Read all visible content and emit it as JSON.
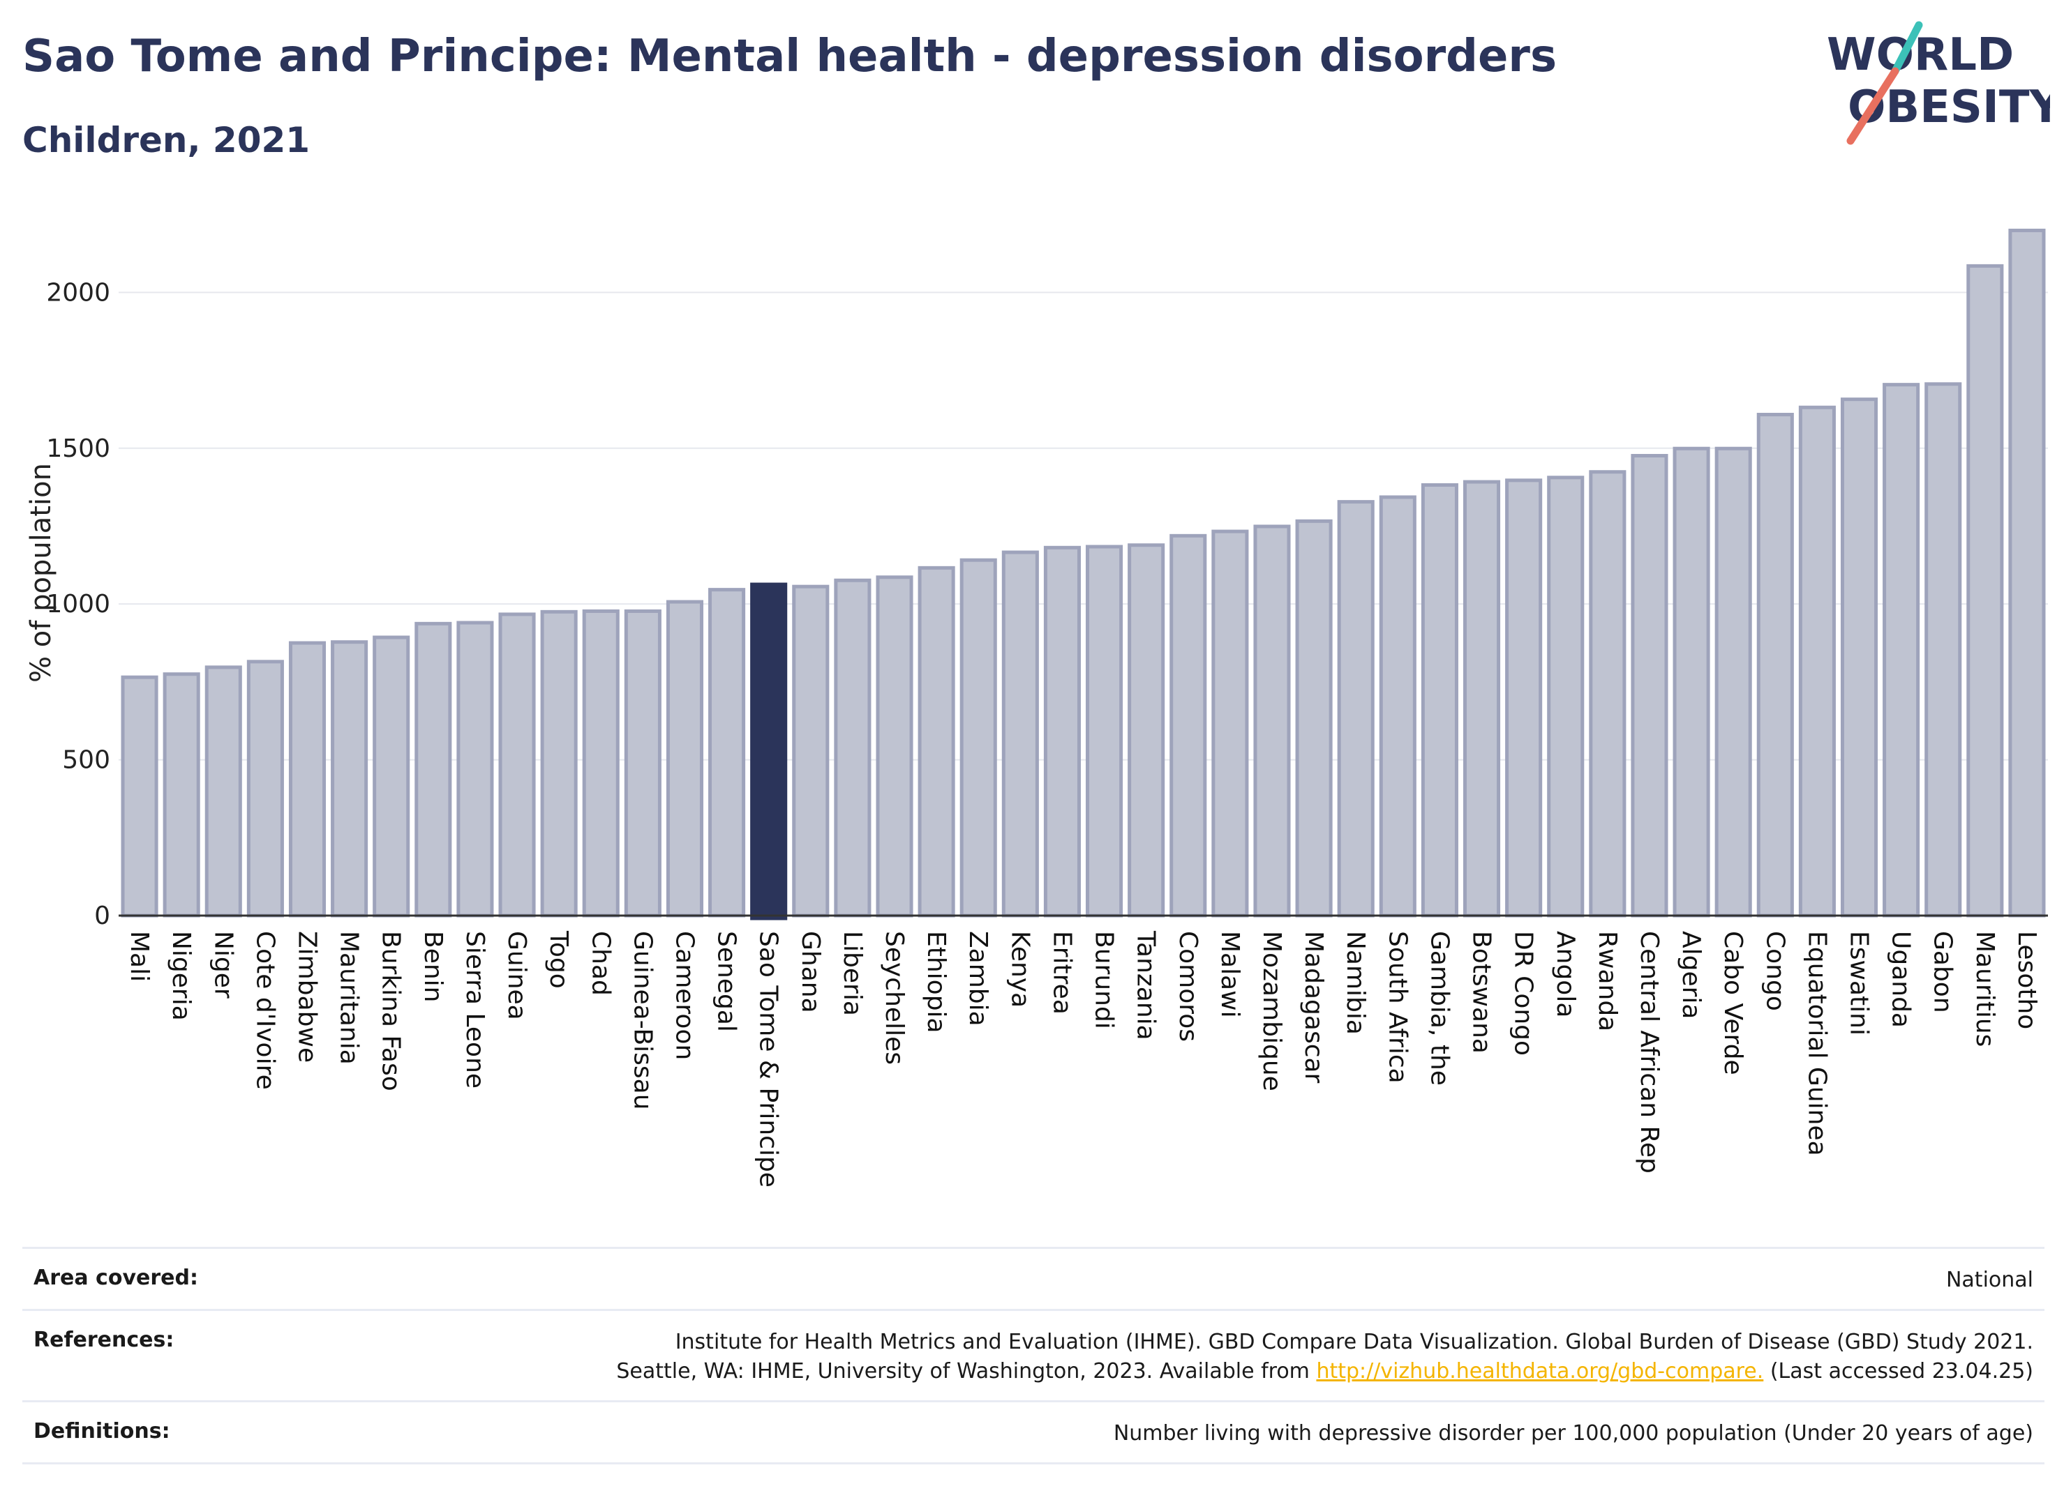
{
  "header": {
    "title": "Sao Tome and Principe: Mental health - depression disorders",
    "subtitle": "Children, 2021"
  },
  "logo": {
    "line1": "WORLD",
    "line2": "OBESITY"
  },
  "colors": {
    "highlight": "#2b345a",
    "bar_fill": "#bfc3d1",
    "bar_stroke": "#9ea3bb",
    "accent_teal": "#3cc1b8",
    "accent_coral": "#e8705f",
    "link": "#f4b400"
  },
  "chart_data": {
    "type": "bar",
    "ylabel": "% of population",
    "ylim": [
      0,
      2200
    ],
    "yticks": [
      0,
      500,
      1000,
      1500,
      2000
    ],
    "grid": true,
    "highlight_category": "Sao Tome & Principe",
    "categories": [
      "Mali",
      "Nigeria",
      "Niger",
      "Cote d'Ivoire",
      "Zimbabwe",
      "Mauritania",
      "Burkina Faso",
      "Benin",
      "Sierra Leone",
      "Guinea",
      "Togo",
      "Chad",
      "Guinea-Bissau",
      "Cameroon",
      "Senegal",
      "Sao Tome & Principe",
      "Ghana",
      "Liberia",
      "Seychelles",
      "Ethiopia",
      "Zambia",
      "Kenya",
      "Eritrea",
      "Burundi",
      "Tanzania",
      "Comoros",
      "Malawi",
      "Mozambique",
      "Madagascar",
      "Namibia",
      "South Africa",
      "Gambia, the",
      "Botswana",
      "DR Congo",
      "Angola",
      "Rwanda",
      "Central African Rep",
      "Algeria",
      "Cabo Verde",
      "Congo",
      "Equatorial Guinea",
      "Eswatini",
      "Uganda",
      "Gabon",
      "Mauritius",
      "Lesotho"
    ],
    "values": [
      765,
      775,
      797,
      815,
      875,
      878,
      893,
      937,
      940,
      967,
      975,
      977,
      977,
      1007,
      1046,
      1063,
      1056,
      1076,
      1086,
      1116,
      1141,
      1166,
      1181,
      1184,
      1189,
      1219,
      1233,
      1249,
      1266,
      1328,
      1343,
      1382,
      1392,
      1397,
      1406,
      1424,
      1476,
      1499,
      1499,
      1608,
      1631,
      1657,
      1704,
      1706,
      2085,
      2199
    ]
  },
  "info": {
    "area": {
      "label": "Area covered:",
      "value": "National"
    },
    "references": {
      "label": "References:",
      "line1": "Institute for Health Metrics and Evaluation (IHME). GBD Compare Data Visualization. Global Burden of Disease (GBD) Study 2021.",
      "line2_before": "Seattle, WA: IHME, University of Washington, 2023. Available from ",
      "link": "http://vizhub.healthdata.org/gbd-compare.",
      "line2_after": " (Last accessed 23.04.25)"
    },
    "definitions": {
      "label": "Definitions:",
      "value": "Number living with depressive disorder per 100,000 population (Under 20 years of age)"
    }
  }
}
